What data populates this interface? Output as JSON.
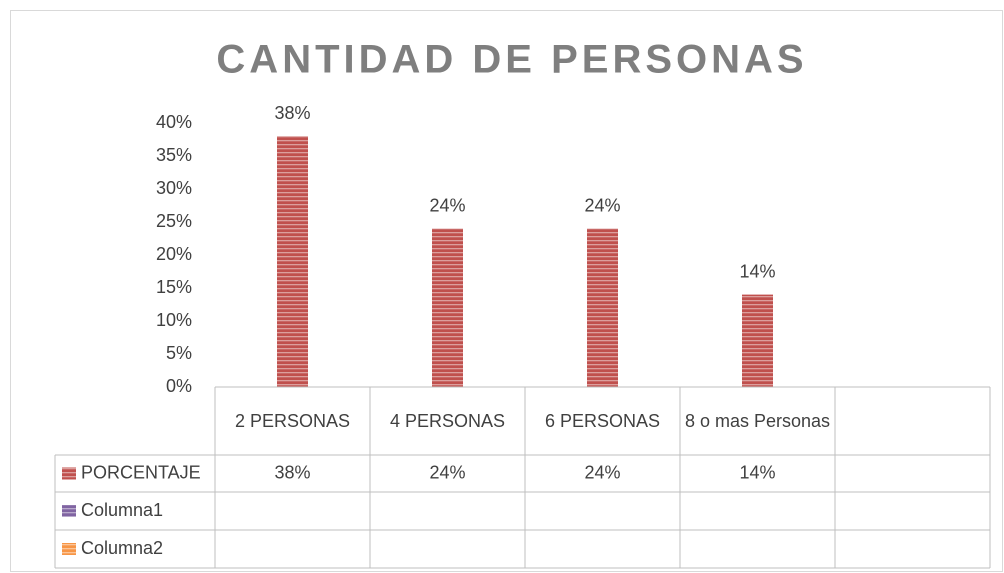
{
  "chart_data": {
    "type": "bar",
    "title": "CANTIDAD DE PERSONAS",
    "categories": [
      "2 PERSONAS",
      "4 PERSONAS",
      "6 PERSONAS",
      "8 o mas Personas",
      null
    ],
    "series": [
      {
        "name": "PORCENTAJE",
        "color": "#c0504d",
        "values": [
          38,
          24,
          24,
          14,
          null
        ],
        "value_labels": [
          "38%",
          "24%",
          "24%",
          "14%",
          null
        ]
      },
      {
        "name": "Columna1",
        "color": "#8064a2",
        "values": [
          null,
          null,
          null,
          null,
          null
        ]
      },
      {
        "name": "Columna2",
        "color": "#f79646",
        "values": [
          null,
          null,
          null,
          null,
          null
        ]
      }
    ],
    "ylim": [
      0,
      40
    ],
    "yticks": [
      {
        "value": 0,
        "label": "0%"
      },
      {
        "value": 5,
        "label": "5%"
      },
      {
        "value": 10,
        "label": "10%"
      },
      {
        "value": 15,
        "label": "15%"
      },
      {
        "value": 20,
        "label": "20%"
      },
      {
        "value": 25,
        "label": "25%"
      },
      {
        "value": 30,
        "label": "30%"
      },
      {
        "value": 35,
        "label": "35%"
      },
      {
        "value": 40,
        "label": "40%"
      }
    ],
    "grid": false,
    "data_table": true
  }
}
